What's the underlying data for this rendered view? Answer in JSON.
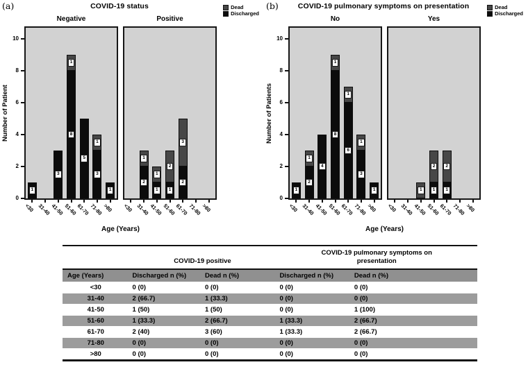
{
  "colors": {
    "plot_background": "#d2d2d2",
    "frame": "#161616",
    "discharged": "#0c0c0c",
    "dead": "#474747",
    "table_header_bg": "#909090",
    "table_stripe_bg": "#9c9c9c"
  },
  "chart_data": [
    {
      "type": "bar",
      "stacked": true,
      "corner_label": "(a)",
      "title": "COVID-19 status",
      "ylabel": "Number of Patient",
      "xlabel": "Age (Years)",
      "ylim": [
        0,
        10.7
      ],
      "yticks": [
        0,
        2,
        4,
        6,
        8,
        10
      ],
      "grid": false,
      "legend_position": "top-right",
      "categories": [
        "<30",
        "31-40",
        "41-50",
        "51-60",
        "61-70",
        "71-80",
        ">80"
      ],
      "legend": [
        {
          "label": "Dead",
          "color": "#474747"
        },
        {
          "label": "Discharged",
          "color": "#0c0c0c"
        }
      ],
      "panels": [
        {
          "label": "Negative",
          "series": [
            {
              "name": "Discharged",
              "color": "#0c0c0c",
              "values": [
                1,
                0,
                3,
                8,
                5,
                3,
                1
              ]
            },
            {
              "name": "Dead",
              "color": "#474747",
              "values": [
                0,
                0,
                0,
                1,
                0,
                1,
                0
              ]
            }
          ]
        },
        {
          "label": "Positive",
          "series": [
            {
              "name": "Discharged",
              "color": "#0c0c0c",
              "values": [
                0,
                2,
                1,
                1,
                2,
                0,
                0
              ]
            },
            {
              "name": "Dead",
              "color": "#474747",
              "values": [
                0,
                1,
                1,
                2,
                3,
                0,
                0
              ]
            }
          ]
        }
      ]
    },
    {
      "type": "bar",
      "stacked": true,
      "corner_label": "(b)",
      "title": "COVID-19 pulmonary symptoms on presentation",
      "ylabel": "Number of Patients",
      "xlabel": "Age (Years)",
      "ylim": [
        0,
        10.7
      ],
      "yticks": [
        0,
        2,
        4,
        6,
        8,
        10
      ],
      "grid": false,
      "legend_position": "top-right",
      "categories": [
        "<30",
        "31-40",
        "41-50",
        "51-60",
        "61-70",
        "71-80",
        ">80"
      ],
      "legend": [
        {
          "label": "Dead",
          "color": "#474747"
        },
        {
          "label": "Discharged",
          "color": "#0c0c0c"
        }
      ],
      "panels": [
        {
          "label": "No",
          "series": [
            {
              "name": "Discharged",
              "color": "#0c0c0c",
              "values": [
                1,
                2,
                4,
                8,
                6,
                3,
                1
              ]
            },
            {
              "name": "Dead",
              "color": "#474747",
              "values": [
                0,
                1,
                0,
                1,
                1,
                1,
                0
              ]
            }
          ]
        },
        {
          "label": "Yes",
          "series": [
            {
              "name": "Discharged",
              "color": "#0c0c0c",
              "values": [
                0,
                0,
                0,
                1,
                1,
                0,
                0
              ]
            },
            {
              "name": "Dead",
              "color": "#474747",
              "values": [
                0,
                0,
                1,
                2,
                2,
                0,
                0
              ]
            }
          ]
        }
      ]
    }
  ],
  "table": {
    "group_headers": [
      "",
      "COVID-19 positive",
      "COVID-19 pulmonary symptoms on\npresentation"
    ],
    "columns": [
      "Age (Years)",
      "Discharged n (%)",
      "Dead n (%)",
      "Discharged n (%)",
      "Dead n (%)"
    ],
    "rows": [
      [
        "<30",
        "0 (0)",
        "0 (0)",
        "0 (0)",
        "0 (0)"
      ],
      [
        "31-40",
        "2 (66.7)",
        "1 (33.3)",
        "0 (0)",
        "0 (0)"
      ],
      [
        "41-50",
        "1 (50)",
        "1 (50)",
        "0 (0)",
        "1 (100)"
      ],
      [
        "51-60",
        "1 (33.3)",
        "2 (66.7)",
        "1 (33.3)",
        "2 (66.7)"
      ],
      [
        "61-70",
        "2 (40)",
        "3 (60)",
        "1 (33.3)",
        "2 (66.7)"
      ],
      [
        "71-80",
        "0 (0)",
        "0 (0)",
        "0 (0)",
        "0 (0)"
      ],
      [
        ">80",
        "0 (0)",
        "0 (0)",
        "0 (0)",
        "0 (0)"
      ]
    ]
  }
}
